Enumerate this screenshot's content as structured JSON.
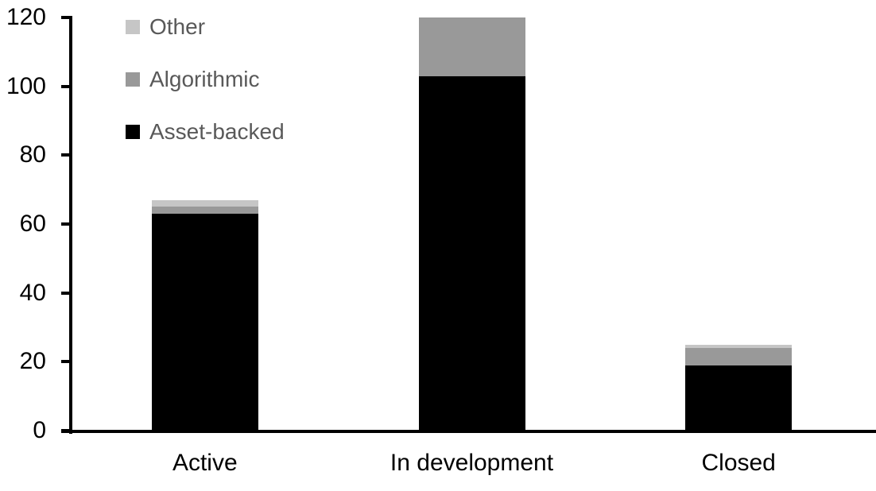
{
  "chart_data": {
    "type": "bar",
    "stacked": true,
    "title": "",
    "categories": [
      "Active",
      "In development",
      "Closed"
    ],
    "series": [
      {
        "name": "Asset-backed",
        "color": "#000000",
        "values": [
          63,
          103,
          19
        ]
      },
      {
        "name": "Algorithmic",
        "color": "#999999",
        "values": [
          2,
          17,
          5
        ]
      },
      {
        "name": "Other",
        "color": "#c6c6c6",
        "values": [
          2,
          0,
          1
        ]
      }
    ],
    "ylim": [
      0,
      120
    ],
    "yticks": [
      0,
      20,
      40,
      60,
      80,
      100,
      120
    ],
    "xlabel": "",
    "ylabel": "",
    "grid": false,
    "legend_position": "top-left",
    "legend_order": [
      "Other",
      "Algorithmic",
      "Asset-backed"
    ]
  },
  "colors": {
    "background": "#ffffff",
    "axis": "#000000",
    "tick_label": "#000000",
    "category_label": "#000000",
    "legend_text": "#595959"
  }
}
